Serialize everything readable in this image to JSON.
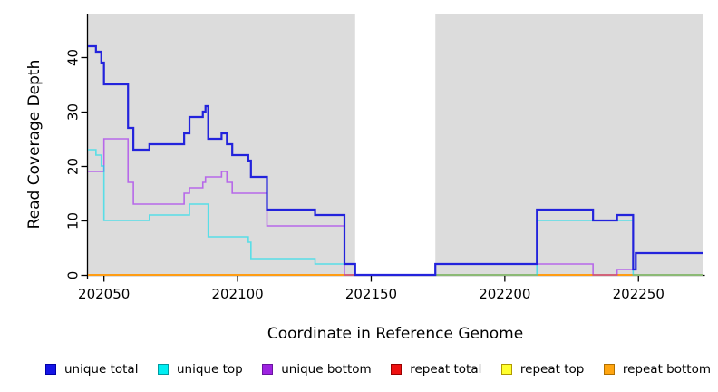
{
  "figure": {
    "background": "#ffffff",
    "plot_background": "#dcdcdc",
    "axis_color": "#000000"
  },
  "legend": {
    "items": [
      {
        "label": "unique total",
        "fill": "#1414e6",
        "border": "#0000a8"
      },
      {
        "label": "unique top",
        "fill": "#00eef2",
        "border": "#009aa0"
      },
      {
        "label": "unique bottom",
        "fill": "#9d23e0",
        "border": "#6a14a0"
      },
      {
        "label": "repeat total",
        "fill": "#ee1111",
        "border": "#990000"
      },
      {
        "label": "repeat top",
        "fill": "#ffff2e",
        "border": "#b09a00"
      },
      {
        "label": "repeat bottom",
        "fill": "#ffa510",
        "border": "#b06f00"
      }
    ]
  },
  "chart_data": {
    "type": "line",
    "subtype": "step",
    "title": "",
    "xlabel": "Coordinate in Reference Genome",
    "ylabel": "Read Coverage Depth",
    "xlim": [
      202044,
      202274
    ],
    "ylim": [
      0,
      48
    ],
    "x_ticks": [
      202050,
      202100,
      202150,
      202200,
      202250
    ],
    "y_ticks": [
      0,
      10,
      20,
      30,
      40
    ],
    "grid": false,
    "legend_position": "bottom",
    "covered_regions": [
      [
        202044,
        202144
      ],
      [
        202174,
        202274
      ]
    ],
    "no_data_region": [
      202144,
      202174
    ],
    "x_end": 202274,
    "series": [
      {
        "name": "repeat total",
        "color": "#dd2222",
        "width": 1.4,
        "opacity": 1,
        "points": [
          [
            202044,
            0
          ]
        ]
      },
      {
        "name": "repeat top",
        "color": "#ffee00",
        "width": 1.4,
        "opacity": 1,
        "points": [
          [
            202044,
            0
          ]
        ]
      },
      {
        "name": "repeat bottom",
        "color": "#ff9d14",
        "width": 2,
        "opacity": 1,
        "points": [
          [
            202044,
            0
          ]
        ]
      },
      {
        "name": "unique bottom",
        "color": "#a020f0",
        "width": 1.6,
        "opacity": 0.62,
        "points": [
          [
            202044,
            19
          ],
          [
            202050,
            25
          ],
          [
            202059,
            17
          ],
          [
            202061,
            13
          ],
          [
            202080,
            15
          ],
          [
            202082,
            16
          ],
          [
            202087,
            17
          ],
          [
            202088,
            18
          ],
          [
            202094,
            19
          ],
          [
            202096,
            17
          ],
          [
            202098,
            15
          ],
          [
            202111,
            9
          ],
          [
            202140,
            0
          ],
          [
            202174,
            2
          ],
          [
            202233,
            0
          ],
          [
            202242,
            1
          ],
          [
            202249,
            4
          ]
        ]
      },
      {
        "name": "unique top",
        "color": "#00e0ee",
        "width": 1.6,
        "opacity": 0.6,
        "points": [
          [
            202044,
            23
          ],
          [
            202047,
            22
          ],
          [
            202049,
            20
          ],
          [
            202050,
            10
          ],
          [
            202067,
            11
          ],
          [
            202082,
            13
          ],
          [
            202089,
            7
          ],
          [
            202104,
            6
          ],
          [
            202105,
            3
          ],
          [
            202129,
            2
          ],
          [
            202144,
            0
          ],
          [
            202212,
            10
          ],
          [
            202248,
            0
          ]
        ]
      },
      {
        "name": "unique total",
        "color": "#2323dc",
        "width": 2.2,
        "opacity": 1,
        "points": [
          [
            202044,
            42
          ],
          [
            202047,
            41
          ],
          [
            202049,
            39
          ],
          [
            202050,
            35
          ],
          [
            202059,
            27
          ],
          [
            202061,
            23
          ],
          [
            202067,
            24
          ],
          [
            202080,
            26
          ],
          [
            202082,
            29
          ],
          [
            202087,
            30
          ],
          [
            202088,
            31
          ],
          [
            202089,
            25
          ],
          [
            202094,
            26
          ],
          [
            202096,
            24
          ],
          [
            202098,
            22
          ],
          [
            202104,
            21
          ],
          [
            202105,
            18
          ],
          [
            202111,
            12
          ],
          [
            202129,
            11
          ],
          [
            202140,
            2
          ],
          [
            202144,
            0
          ],
          [
            202174,
            2
          ],
          [
            202212,
            12
          ],
          [
            202233,
            10
          ],
          [
            202242,
            11
          ],
          [
            202248,
            1
          ],
          [
            202249,
            4
          ]
        ]
      }
    ]
  }
}
